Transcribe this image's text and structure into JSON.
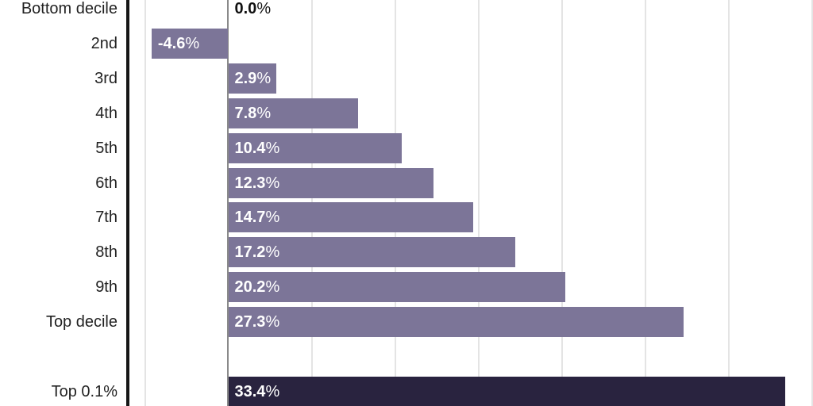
{
  "chart_data": {
    "type": "bar",
    "orientation": "horizontal",
    "title": "",
    "categories": [
      "Bottom decile",
      "2nd",
      "3rd",
      "4th",
      "5th",
      "6th",
      "7th",
      "8th",
      "9th",
      "Top decile",
      "Top 0.1%"
    ],
    "values": [
      0.0,
      -4.6,
      2.9,
      7.8,
      10.4,
      12.3,
      14.7,
      17.2,
      20.2,
      27.3,
      33.4
    ],
    "value_nums": [
      "0.0",
      "-4.6",
      "2.9",
      "7.8",
      "10.4",
      "12.3",
      "14.7",
      "17.2",
      "20.2",
      "27.3",
      "33.4"
    ],
    "percent_sign": "%",
    "highlight_category": "Top 0.1%",
    "xlim": [
      -5,
      35
    ],
    "grid_interval": 5,
    "grid": true,
    "gridline_ticks": [
      -5,
      5,
      10,
      15,
      20,
      25,
      30,
      35
    ],
    "legend": "none",
    "colors": {
      "bar": "#7c7598",
      "highlight_bar": "#29233f",
      "gridline": "#e4e4e4",
      "zero_line": "#8a8a8a",
      "axis_line": "#161616",
      "category_text": "#222222",
      "value_text_inside": "#ffffff",
      "value_text_zero": "#111111"
    }
  }
}
